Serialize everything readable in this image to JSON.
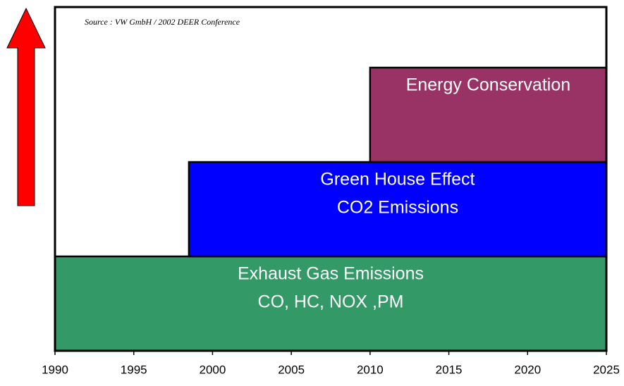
{
  "chart_data": {
    "type": "timeline",
    "source": "Source : VW GmbH / 2002 DEER Conference",
    "xlim": [
      1990,
      2025
    ],
    "xticks": [
      1990,
      1995,
      2000,
      2005,
      2010,
      2015,
      2020,
      2025
    ],
    "bars": [
      {
        "labels": [
          "Exhaust Gas Emissions",
          "CO, HC, NOX ,PM"
        ],
        "start": 1990,
        "end": 2025,
        "color": "#339966"
      },
      {
        "labels": [
          "Green House Effect",
          "CO2 Emissions"
        ],
        "start": 1998.5,
        "end": 2025,
        "color": "#0000ff"
      },
      {
        "labels": [
          "Energy Conservation"
        ],
        "start": 2010,
        "end": 2025,
        "color": "#993366"
      }
    ]
  }
}
